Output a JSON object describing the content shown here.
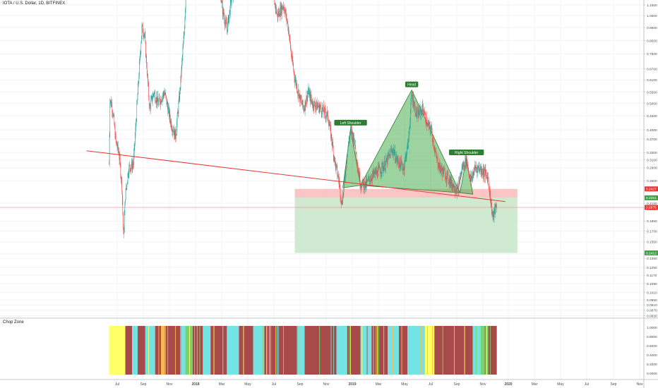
{
  "header": {
    "symbol_title": "IOTA / U.S. Dollar, 1D, BITFINEX"
  },
  "indicator": {
    "title": "Chop Zone"
  },
  "colors": {
    "up": "#26a69a",
    "down": "#ef5350",
    "trendline": "#e53935",
    "pattern_fill": "#4caf50",
    "risk_zone": "#f8bbbb",
    "reward_zone": "#c8e6c9",
    "chop_red": "#a84a4a",
    "chop_cyan": "#74e3e3",
    "chop_yellow": "#ffff66",
    "chop_green": "#79d36b",
    "chop_orange": "#ffb74d"
  },
  "chart_data": [
    {
      "type": "candlestick",
      "title": "IOTA / U.S. Dollar, 1D, BITFINEX",
      "y_scale": "log",
      "x_ticks": [
        "Jul",
        "Sep",
        "Nov",
        "2018",
        "Mar",
        "May",
        "Jul",
        "Sep",
        "Nov",
        "2019",
        "Mar",
        "May",
        "Jul",
        "Sep",
        "Nov",
        "2020",
        "Mar",
        "May",
        "Jul",
        "Sep",
        "Nov"
      ],
      "y_ticks": [
        "1.1500",
        "1.0500",
        "0.9500",
        "0.8500",
        "0.7600",
        "0.6700",
        "0.6100",
        "0.5500",
        "0.5000",
        "0.4500",
        "0.4000",
        "0.3700",
        "0.3300",
        "0.3100",
        "0.2900",
        "0.2600",
        "0.2150",
        "0.2050",
        "0.1850",
        "0.1700",
        "0.1550",
        "0.1400",
        "0.1350",
        "0.1250",
        "0.1170",
        "0.1090",
        "0.1010",
        "0.0950",
        "0.0910",
        "0.0870",
        "0.0830"
      ],
      "price_labels": [
        {
          "value": "0.2427",
          "role": "stop-loss"
        },
        {
          "value": "0.2251",
          "role": "entry"
        },
        {
          "value": "0.2075",
          "role": "last-price"
        },
        {
          "value": "0.1412",
          "role": "take-profit"
        }
      ],
      "pattern": {
        "name": "head-and-shoulders",
        "labels": [
          "Left Shoulder",
          "Head",
          "Right Shoulder"
        ],
        "points": [
          {
            "date": "2018-12-10",
            "price": 0.245
          },
          {
            "date": "2018-12-28",
            "price": 0.405
          },
          {
            "date": "2019-01-20",
            "price": 0.25
          },
          {
            "date": "2019-05-20",
            "price": 0.56
          },
          {
            "date": "2019-09-10",
            "price": 0.235
          },
          {
            "date": "2019-09-25",
            "price": 0.315
          },
          {
            "date": "2019-10-10",
            "price": 0.232
          }
        ]
      },
      "neckline": {
        "from": {
          "date": "2017-04-20",
          "price": 0.335
        },
        "to": {
          "date": "2019-12-25",
          "price": 0.218
        }
      },
      "trade_zones": {
        "start": "2018-08-20",
        "end": "2020-01-22",
        "stop_loss": 0.2427,
        "entry": 0.2251,
        "take_profit": 0.1412
      },
      "price_path": [
        {
          "date": "2017-06-12",
          "price": 0.3
        },
        {
          "date": "2017-06-14",
          "price": 0.52
        },
        {
          "date": "2017-06-20",
          "price": 0.48
        },
        {
          "date": "2017-06-28",
          "price": 0.36
        },
        {
          "date": "2017-07-05",
          "price": 0.33
        },
        {
          "date": "2017-07-12",
          "price": 0.25
        },
        {
          "date": "2017-07-16",
          "price": 0.16
        },
        {
          "date": "2017-07-20",
          "price": 0.23
        },
        {
          "date": "2017-07-28",
          "price": 0.29
        },
        {
          "date": "2017-08-08",
          "price": 0.3
        },
        {
          "date": "2017-08-15",
          "price": 0.45
        },
        {
          "date": "2017-08-22",
          "price": 0.68
        },
        {
          "date": "2017-08-28",
          "price": 0.95
        },
        {
          "date": "2017-09-03",
          "price": 0.9
        },
        {
          "date": "2017-09-15",
          "price": 0.48
        },
        {
          "date": "2017-09-25",
          "price": 0.55
        },
        {
          "date": "2017-10-05",
          "price": 0.5
        },
        {
          "date": "2017-10-20",
          "price": 0.55
        },
        {
          "date": "2017-11-05",
          "price": 0.42
        },
        {
          "date": "2017-11-15",
          "price": 0.38
        },
        {
          "date": "2017-11-25",
          "price": 0.55
        },
        {
          "date": "2017-12-05",
          "price": 0.9
        },
        {
          "date": "2017-12-10",
          "price": 1.35
        },
        {
          "date": "2017-12-20",
          "price": 1.6
        },
        {
          "date": "2018-02-20",
          "price": 1.6
        },
        {
          "date": "2018-03-05",
          "price": 1.1
        },
        {
          "date": "2018-03-15",
          "price": 0.93
        },
        {
          "date": "2018-03-25",
          "price": 1.2
        },
        {
          "date": "2018-04-20",
          "price": 1.6
        },
        {
          "date": "2018-06-15",
          "price": 1.6
        },
        {
          "date": "2018-07-01",
          "price": 1.25
        },
        {
          "date": "2018-07-10",
          "price": 1.05
        },
        {
          "date": "2018-07-25",
          "price": 1.15
        },
        {
          "date": "2018-08-05",
          "price": 0.95
        },
        {
          "date": "2018-08-12",
          "price": 0.75
        },
        {
          "date": "2018-08-20",
          "price": 0.62
        },
        {
          "date": "2018-09-01",
          "price": 0.52
        },
        {
          "date": "2018-09-10",
          "price": 0.48
        },
        {
          "date": "2018-09-20",
          "price": 0.55
        },
        {
          "date": "2018-10-01",
          "price": 0.5
        },
        {
          "date": "2018-10-20",
          "price": 0.48
        },
        {
          "date": "2018-11-05",
          "price": 0.45
        },
        {
          "date": "2018-11-15",
          "price": 0.36
        },
        {
          "date": "2018-11-22",
          "price": 0.3
        },
        {
          "date": "2018-12-01",
          "price": 0.26
        },
        {
          "date": "2018-12-07",
          "price": 0.215
        },
        {
          "date": "2018-12-12",
          "price": 0.24
        },
        {
          "date": "2018-12-20",
          "price": 0.33
        },
        {
          "date": "2018-12-28",
          "price": 0.4
        },
        {
          "date": "2019-01-05",
          "price": 0.37
        },
        {
          "date": "2019-01-20",
          "price": 0.255
        },
        {
          "date": "2019-02-01",
          "price": 0.25
        },
        {
          "date": "2019-02-15",
          "price": 0.27
        },
        {
          "date": "2019-03-01",
          "price": 0.28
        },
        {
          "date": "2019-03-20",
          "price": 0.3
        },
        {
          "date": "2019-04-05",
          "price": 0.34
        },
        {
          "date": "2019-04-15",
          "price": 0.31
        },
        {
          "date": "2019-05-01",
          "price": 0.29
        },
        {
          "date": "2019-05-12",
          "price": 0.36
        },
        {
          "date": "2019-05-20",
          "price": 0.54
        },
        {
          "date": "2019-06-01",
          "price": 0.45
        },
        {
          "date": "2019-06-15",
          "price": 0.48
        },
        {
          "date": "2019-06-25",
          "price": 0.42
        },
        {
          "date": "2019-07-05",
          "price": 0.4
        },
        {
          "date": "2019-07-15",
          "price": 0.32
        },
        {
          "date": "2019-07-25",
          "price": 0.29
        },
        {
          "date": "2019-08-10",
          "price": 0.27
        },
        {
          "date": "2019-08-25",
          "price": 0.25
        },
        {
          "date": "2019-09-05",
          "price": 0.24
        },
        {
          "date": "2019-09-15",
          "price": 0.29
        },
        {
          "date": "2019-09-25",
          "price": 0.31
        },
        {
          "date": "2019-10-05",
          "price": 0.26
        },
        {
          "date": "2019-10-15",
          "price": 0.29
        },
        {
          "date": "2019-10-25",
          "price": 0.29
        },
        {
          "date": "2019-11-05",
          "price": 0.28
        },
        {
          "date": "2019-11-15",
          "price": 0.265
        },
        {
          "date": "2019-11-22",
          "price": 0.21
        },
        {
          "date": "2019-11-26",
          "price": 0.19
        },
        {
          "date": "2019-12-01",
          "price": 0.205
        },
        {
          "date": "2019-12-05",
          "price": 0.2075
        }
      ]
    },
    {
      "type": "heatmap",
      "title": "Chop Zone",
      "y_ticks": [
        "1.0000",
        "0.8000",
        "0.6000",
        "0.4000",
        "0.2000",
        "0.0000"
      ],
      "segments": [
        {
          "from": "2017-06-12",
          "to": "2017-07-20",
          "color": "#ffff66"
        },
        {
          "from": "2017-07-20",
          "to": "2017-08-05",
          "color": "#a84a4a"
        },
        {
          "from": "2017-08-05",
          "to": "2017-08-18",
          "color": "#74e3e3"
        },
        {
          "from": "2017-08-18",
          "to": "2017-09-05",
          "color": "#a84a4a"
        },
        {
          "from": "2017-09-05",
          "to": "2017-09-28",
          "color": "#74e3e3"
        },
        {
          "from": "2017-09-28",
          "to": "2017-10-12",
          "color": "#a84a4a"
        },
        {
          "from": "2017-10-12",
          "to": "2017-10-20",
          "color": "#ffb74d"
        },
        {
          "from": "2017-10-20",
          "to": "2017-11-28",
          "color": "#a84a4a"
        },
        {
          "from": "2017-11-28",
          "to": "2017-12-08",
          "color": "#74e3e3"
        },
        {
          "from": "2017-12-08",
          "to": "2017-12-25",
          "color": "#79d36b"
        },
        {
          "from": "2017-12-25",
          "to": "2018-01-18",
          "color": "#a84a4a"
        },
        {
          "from": "2018-01-18",
          "to": "2018-02-05",
          "color": "#74e3e3"
        },
        {
          "from": "2018-02-05",
          "to": "2018-03-15",
          "color": "#a84a4a"
        },
        {
          "from": "2018-03-15",
          "to": "2018-04-12",
          "color": "#74e3e3"
        },
        {
          "from": "2018-04-12",
          "to": "2018-05-15",
          "color": "#a84a4a"
        },
        {
          "from": "2018-05-15",
          "to": "2018-06-10",
          "color": "#74e3e3"
        },
        {
          "from": "2018-06-10",
          "to": "2018-08-25",
          "color": "#a84a4a"
        },
        {
          "from": "2018-08-25",
          "to": "2018-09-12",
          "color": "#74e3e3"
        },
        {
          "from": "2018-09-12",
          "to": "2018-11-25",
          "color": "#a84a4a"
        },
        {
          "from": "2018-11-25",
          "to": "2018-12-20",
          "color": "#74e3e3"
        },
        {
          "from": "2018-12-20",
          "to": "2019-01-20",
          "color": "#a84a4a"
        },
        {
          "from": "2019-01-20",
          "to": "2019-02-15",
          "color": "#74e3e3"
        },
        {
          "from": "2019-02-15",
          "to": "2019-03-25",
          "color": "#a84a4a"
        },
        {
          "from": "2019-03-25",
          "to": "2019-04-20",
          "color": "#74e3e3"
        },
        {
          "from": "2019-04-20",
          "to": "2019-05-10",
          "color": "#a84a4a"
        },
        {
          "from": "2019-05-10",
          "to": "2019-06-20",
          "color": "#74e3e3"
        },
        {
          "from": "2019-06-20",
          "to": "2019-07-12",
          "color": "#ffff66"
        },
        {
          "from": "2019-07-12",
          "to": "2019-10-10",
          "color": "#a84a4a"
        },
        {
          "from": "2019-10-10",
          "to": "2019-10-28",
          "color": "#74e3e3"
        },
        {
          "from": "2019-10-28",
          "to": "2019-11-15",
          "color": "#79d36b"
        },
        {
          "from": "2019-11-15",
          "to": "2019-12-05",
          "color": "#a84a4a"
        }
      ]
    }
  ]
}
